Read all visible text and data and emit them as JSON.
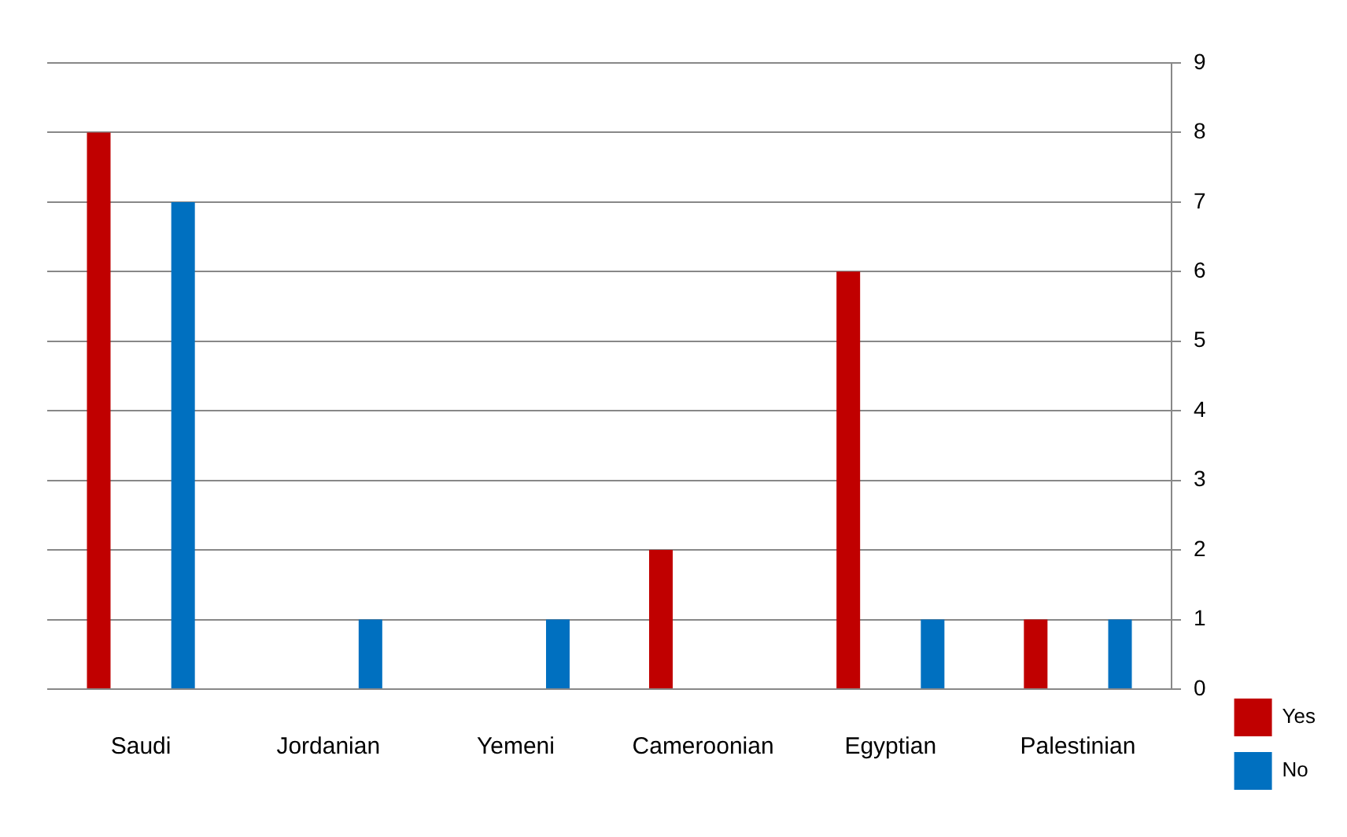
{
  "chart_data": {
    "type": "bar",
    "categories": [
      "Saudi",
      "Jordanian",
      "Yemeni",
      "Cameroonian",
      "Egyptian",
      "Palestinian"
    ],
    "series": [
      {
        "name": "Yes",
        "color": "#c00000",
        "values": [
          8,
          0,
          0,
          2,
          6,
          1
        ]
      },
      {
        "name": "No",
        "color": "#0070c0",
        "values": [
          7,
          1,
          1,
          0,
          1,
          1
        ]
      }
    ],
    "ylim": [
      0,
      9
    ],
    "yticks": [
      0,
      1,
      2,
      3,
      4,
      5,
      6,
      7,
      8,
      9
    ],
    "grid": "y",
    "legend": "right"
  }
}
